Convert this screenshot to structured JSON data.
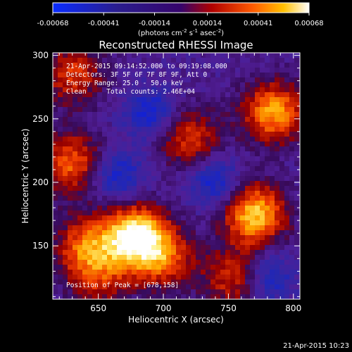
{
  "chart_data": {
    "type": "heatmap",
    "title": "Reconstructed RHESSI Image",
    "xlabel": "Heliocentric X (arcsec)",
    "ylabel": "Heliocentric Y (arcsec)",
    "xlim": [
      615,
      805
    ],
    "ylim": [
      108,
      302
    ],
    "xticks": [
      650,
      700,
      750,
      800
    ],
    "yticks": [
      150,
      200,
      250,
      300
    ],
    "colorbar": {
      "ticks": [
        "-0.00068",
        "-0.00041",
        "-0.00014",
        "0.00014",
        "0.00041",
        "0.00068"
      ],
      "label_main": "(photons cm",
      "sup1": "-2",
      "label_mid": " s",
      "sup2": "-1",
      "label_end": " asec",
      "sup3": "-2",
      "label_close": ")",
      "range": [
        -0.00068,
        0.00068
      ]
    },
    "annotations": [
      "21-Apr-2015 09:14:52.000 to 09:19:08.000",
      "Detectors: 3F 5F 6F 7F 8F 9F, Att 0",
      "Energy Range: 25.0 - 50.0 keV",
      "Clean     Total counts: 2.46E+04"
    ],
    "peak_label": "Position of Peak = [678,158]",
    "peak": [
      678,
      158
    ],
    "sources": [
      {
        "x": 678,
        "y": 158,
        "amp": 1.0
      },
      {
        "x": 770,
        "y": 175,
        "amp": 0.85
      },
      {
        "x": 785,
        "y": 255,
        "amp": 0.75
      },
      {
        "x": 700,
        "y": 140,
        "amp": 0.55
      },
      {
        "x": 630,
        "y": 215,
        "amp": 0.6
      },
      {
        "x": 640,
        "y": 150,
        "amp": 0.55
      },
      {
        "x": 720,
        "y": 235,
        "amp": 0.5
      },
      {
        "x": 630,
        "y": 285,
        "amp": 0.5
      },
      {
        "x": 755,
        "y": 125,
        "amp": 0.5
      },
      {
        "x": 650,
        "y": 125,
        "amp": 0.4
      }
    ],
    "minima": [
      {
        "x": 690,
        "y": 255
      },
      {
        "x": 780,
        "y": 125
      },
      {
        "x": 665,
        "y": 205
      },
      {
        "x": 740,
        "y": 200
      }
    ]
  },
  "footer": {
    "timestamp": "21-Apr-2015 10:23"
  }
}
